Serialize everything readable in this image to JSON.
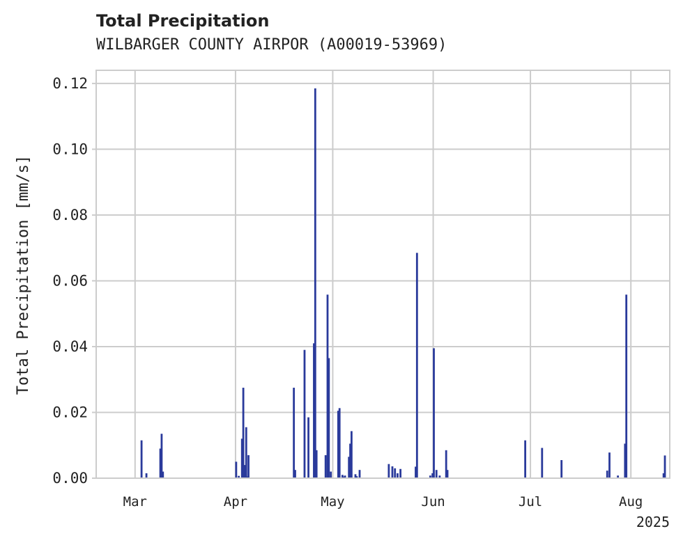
{
  "chart_data": {
    "type": "bar",
    "title": "Total Precipitation",
    "subtitle": "WILBARGER COUNTY AIRPOR (A00019-53969)",
    "ylabel": "Total Precipitation [mm/s]",
    "xlabel": "",
    "year_label": "2025",
    "ylim": [
      0,
      0.124
    ],
    "yticks": [
      0.0,
      0.02,
      0.04,
      0.06,
      0.08,
      0.1,
      0.12
    ],
    "ytick_labels": [
      "0.00",
      "0.02",
      "0.04",
      "0.06",
      "0.08",
      "0.10",
      "0.12"
    ],
    "xlim_day_of_year": [
      48,
      225
    ],
    "xticks": [
      {
        "label": "Mar",
        "day": 60
      },
      {
        "label": "Apr",
        "day": 91
      },
      {
        "label": "May",
        "day": 121
      },
      {
        "label": "Jun",
        "day": 152
      },
      {
        "label": "Jul",
        "day": 182
      },
      {
        "label": "Aug",
        "day": 213
      }
    ],
    "grid": true,
    "bar_color": "#2a3a9b",
    "series": [
      {
        "name": "Total Precipitation",
        "day_of_year": [
          62.0,
          63.5,
          67.8,
          68.2,
          68.6,
          91.2,
          92.0,
          93.0,
          93.4,
          93.8,
          94.3,
          94.6,
          95.0,
          109.0,
          109.4,
          112.3,
          113.5,
          115.2,
          115.6,
          116.0,
          118.8,
          119.4,
          119.8,
          120.4,
          122.7,
          123.1,
          124.0,
          124.4,
          124.8,
          126.0,
          126.4,
          126.8,
          128.0,
          128.4,
          129.3,
          138.3,
          139.4,
          140.2,
          141.0,
          141.9,
          146.6,
          147.0,
          151.1,
          151.8,
          152.2,
          153.0,
          154.0,
          156.0,
          156.4,
          180.4,
          185.6,
          191.6,
          205.7,
          206.4,
          209.0,
          211.2,
          211.6,
          223.1,
          223.5
        ],
        "values": [
          0.0115,
          0.0015,
          0.009,
          0.0135,
          0.002,
          0.005,
          0.0007,
          0.012,
          0.0275,
          0.004,
          0.0155,
          0.0005,
          0.007,
          0.0275,
          0.0025,
          0.039,
          0.0185,
          0.041,
          0.1185,
          0.0085,
          0.007,
          0.0558,
          0.0365,
          0.002,
          0.0205,
          0.0213,
          0.001,
          0.0005,
          0.0008,
          0.0065,
          0.0105,
          0.0143,
          0.0012,
          0.0006,
          0.0025,
          0.0043,
          0.0036,
          0.003,
          0.0015,
          0.0028,
          0.0035,
          0.0685,
          0.0008,
          0.0015,
          0.0395,
          0.0025,
          0.0008,
          0.0085,
          0.0025,
          0.0115,
          0.0092,
          0.0055,
          0.0023,
          0.0078,
          0.0008,
          0.0105,
          0.0558,
          0.0015,
          0.0069
        ]
      }
    ]
  }
}
